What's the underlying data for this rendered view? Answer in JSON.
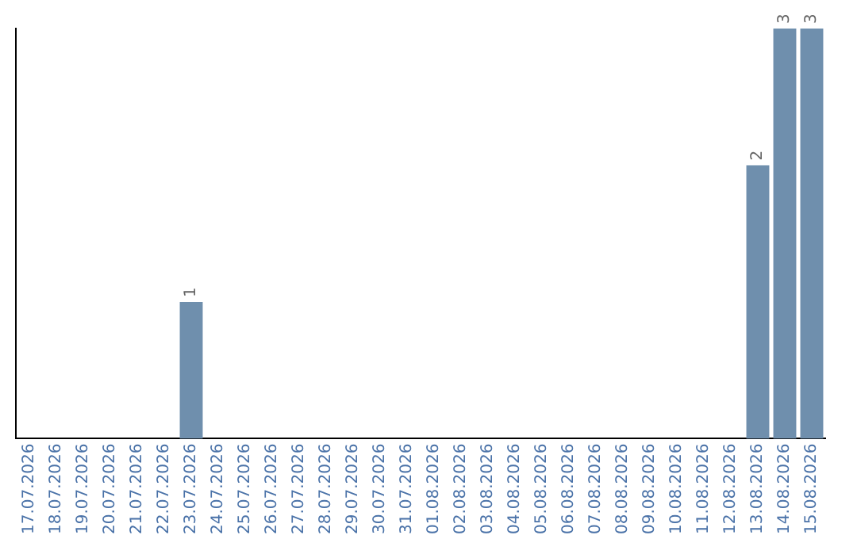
{
  "chart_data": {
    "type": "bar",
    "categories": [
      "17.07.2026",
      "18.07.2026",
      "19.07.2026",
      "20.07.2026",
      "21.07.2026",
      "22.07.2026",
      "23.07.2026",
      "24.07.2026",
      "25.07.2026",
      "26.07.2026",
      "27.07.2026",
      "28.07.2026",
      "29.07.2026",
      "30.07.2026",
      "31.07.2026",
      "01.08.2026",
      "02.08.2026",
      "03.08.2026",
      "04.08.2026",
      "05.08.2026",
      "06.08.2026",
      "07.08.2026",
      "08.08.2026",
      "09.08.2026",
      "10.08.2026",
      "11.08.2026",
      "12.08.2026",
      "13.08.2026",
      "14.08.2026",
      "15.08.2026"
    ],
    "values": [
      0,
      0,
      0,
      0,
      0,
      0,
      1,
      0,
      0,
      0,
      0,
      0,
      0,
      0,
      0,
      0,
      0,
      0,
      0,
      0,
      0,
      0,
      0,
      0,
      0,
      0,
      0,
      2,
      3,
      3
    ],
    "value_labels": [
      null,
      null,
      null,
      null,
      null,
      null,
      "1",
      null,
      null,
      null,
      null,
      null,
      null,
      null,
      null,
      null,
      null,
      null,
      null,
      null,
      null,
      null,
      null,
      null,
      null,
      null,
      null,
      "2",
      "3",
      "3"
    ],
    "color": "#6f8fad",
    "ylim": [
      0,
      3
    ],
    "tick_labels": "x",
    "grid": false,
    "legend": false
  }
}
